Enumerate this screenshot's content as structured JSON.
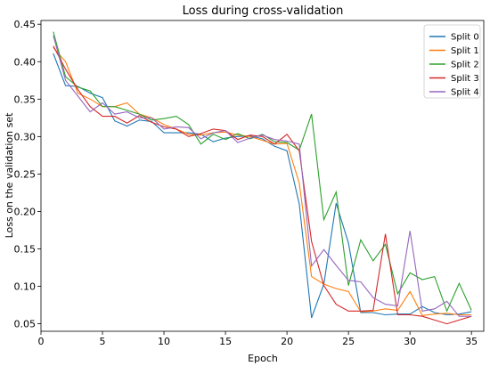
{
  "chart_data": {
    "type": "line",
    "title": "Loss during cross-validation",
    "xlabel": "Epoch",
    "ylabel": "Loss on the validation set",
    "xlim": [
      0,
      36
    ],
    "ylim": [
      0.04,
      0.455
    ],
    "xticks": [
      0,
      5,
      10,
      15,
      20,
      25,
      30,
      35
    ],
    "yticks": [
      0.05,
      0.1,
      0.15,
      0.2,
      0.25,
      0.3,
      0.35,
      0.4,
      0.45
    ],
    "grid": false,
    "legend_position": "top-right",
    "x": [
      1,
      2,
      3,
      4,
      5,
      6,
      7,
      8,
      9,
      10,
      11,
      12,
      13,
      14,
      15,
      16,
      17,
      18,
      19,
      20,
      21,
      22,
      23,
      24,
      25,
      26,
      27,
      28,
      29,
      30,
      31,
      32,
      33,
      34,
      35
    ],
    "series": [
      {
        "name": "Split 0",
        "color": "#1f77b4",
        "values": [
          0.411,
          0.368,
          0.367,
          0.358,
          0.352,
          0.321,
          0.314,
          0.322,
          0.32,
          0.305,
          0.305,
          0.305,
          0.303,
          0.293,
          0.298,
          0.3,
          0.301,
          0.297,
          0.287,
          0.281,
          0.21,
          0.058,
          0.103,
          0.211,
          0.158,
          0.065,
          0.065,
          0.062,
          0.063,
          0.063,
          0.073,
          0.065,
          0.062,
          0.063,
          0.066
        ]
      },
      {
        "name": "Split 1",
        "color": "#ff7f0e",
        "values": [
          0.419,
          0.4,
          0.358,
          0.35,
          0.34,
          0.34,
          0.345,
          0.33,
          0.325,
          0.316,
          0.31,
          0.303,
          0.302,
          0.305,
          0.306,
          0.302,
          0.3,
          0.295,
          0.29,
          0.291,
          0.238,
          0.113,
          0.103,
          0.097,
          0.093,
          0.066,
          0.067,
          0.07,
          0.068,
          0.093,
          0.061,
          0.063,
          0.064,
          0.062,
          0.062
        ]
      },
      {
        "name": "Split 2",
        "color": "#2ca02c",
        "values": [
          0.44,
          0.38,
          0.366,
          0.361,
          0.34,
          0.34,
          0.335,
          0.33,
          0.322,
          0.324,
          0.327,
          0.316,
          0.29,
          0.303,
          0.296,
          0.304,
          0.297,
          0.303,
          0.293,
          0.292,
          0.282,
          0.33,
          0.189,
          0.226,
          0.101,
          0.162,
          0.134,
          0.156,
          0.09,
          0.118,
          0.109,
          0.113,
          0.067,
          0.104,
          0.068
        ]
      },
      {
        "name": "Split 3",
        "color": "#d62728",
        "values": [
          0.421,
          0.39,
          0.363,
          0.34,
          0.327,
          0.327,
          0.318,
          0.328,
          0.319,
          0.313,
          0.31,
          0.3,
          0.304,
          0.31,
          0.308,
          0.296,
          0.302,
          0.3,
          0.29,
          0.303,
          0.281,
          0.16,
          0.101,
          0.076,
          0.067,
          0.067,
          0.068,
          0.17,
          0.062,
          0.062,
          0.06,
          0.055,
          0.05,
          0.055,
          0.06
        ]
      },
      {
        "name": "Split 4",
        "color": "#9467bd",
        "values": [
          0.435,
          0.375,
          0.354,
          0.333,
          0.345,
          0.33,
          0.333,
          0.325,
          0.325,
          0.31,
          0.313,
          0.312,
          0.297,
          0.305,
          0.308,
          0.292,
          0.298,
          0.302,
          0.296,
          0.294,
          0.29,
          0.127,
          0.149,
          0.128,
          0.108,
          0.106,
          0.085,
          0.076,
          0.074,
          0.174,
          0.067,
          0.07,
          0.08,
          0.06,
          0.06
        ]
      }
    ]
  }
}
